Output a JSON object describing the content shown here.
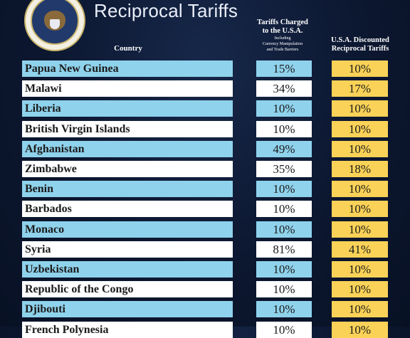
{
  "header": {
    "title": "Reciprocal Tariffs",
    "country_col": "Country",
    "charged_col_line1": "Tariffs Charged",
    "charged_col_line2": "to the U.S.A.",
    "charged_col_sub1": "Including",
    "charged_col_sub2": "Currency Manipulation",
    "charged_col_sub3": "and Trade Barriers",
    "discount_col_line1": "U.S.A. Discounted",
    "discount_col_line2": "Reciprocal Tariffs"
  },
  "seal_icon": "presidential-seal",
  "colors": {
    "row_blue": "#8fd2ec",
    "row_white": "#ffffff",
    "discount_yellow": "#f9d257",
    "background": "#0c1730"
  },
  "rows": [
    {
      "country": "Papua New Guinea",
      "charged": "15%",
      "discounted": "10%"
    },
    {
      "country": "Malawi",
      "charged": "34%",
      "discounted": "17%"
    },
    {
      "country": "Liberia",
      "charged": "10%",
      "discounted": "10%"
    },
    {
      "country": "British Virgin Islands",
      "charged": "10%",
      "discounted": "10%"
    },
    {
      "country": "Afghanistan",
      "charged": "49%",
      "discounted": "10%"
    },
    {
      "country": "Zimbabwe",
      "charged": "35%",
      "discounted": "18%"
    },
    {
      "country": "Benin",
      "charged": "10%",
      "discounted": "10%"
    },
    {
      "country": "Barbados",
      "charged": "10%",
      "discounted": "10%"
    },
    {
      "country": "Monaco",
      "charged": "10%",
      "discounted": "10%"
    },
    {
      "country": "Syria",
      "charged": "81%",
      "discounted": "41%"
    },
    {
      "country": "Uzbekistan",
      "charged": "10%",
      "discounted": "10%"
    },
    {
      "country": "Republic of the Congo",
      "charged": "10%",
      "discounted": "10%"
    },
    {
      "country": "Djibouti",
      "charged": "10%",
      "discounted": "10%"
    },
    {
      "country": "French Polynesia",
      "charged": "10%",
      "discounted": "10%"
    }
  ]
}
